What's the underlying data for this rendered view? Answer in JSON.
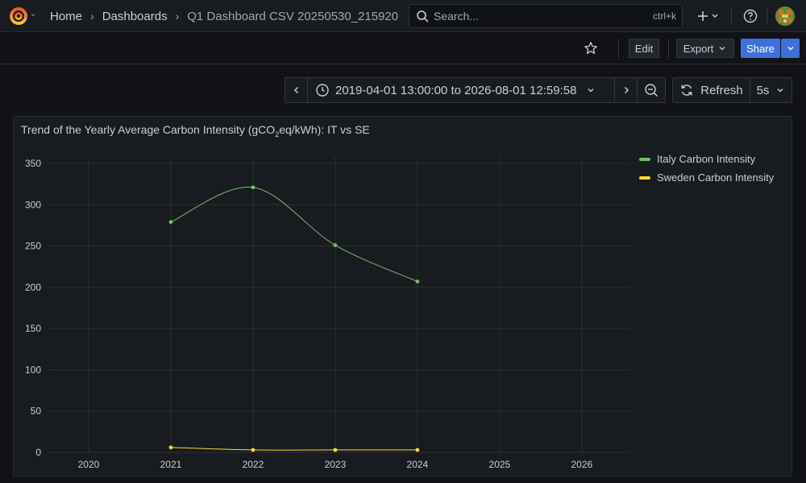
{
  "topbar": {
    "breadcrumbs": [
      "Home",
      "Dashboards",
      "Q1 Dashboard CSV 20250530_215920"
    ],
    "search_placeholder": "Search...",
    "search_shortcut": "ctrl+k"
  },
  "dashbar": {
    "edit_label": "Edit",
    "export_label": "Export",
    "share_label": "Share"
  },
  "timepicker": {
    "range_label": "2019-04-01 13:00:00 to 2026-08-01 12:59:58",
    "refresh_label": "Refresh",
    "refresh_interval": "5s"
  },
  "panel": {
    "title_pre": "Trend of the Yearly Average Carbon Intensity (gCO",
    "title_sub": "2",
    "title_post": "eq/kWh): IT vs SE"
  },
  "colors": {
    "italy": "#73bf69",
    "sweden": "#fade2a",
    "accent": "#3d71d9"
  },
  "chart_data": {
    "type": "line",
    "title": "Trend of the Yearly Average Carbon Intensity (gCO₂eq/kWh): IT vs SE",
    "xlabel": "",
    "ylabel": "",
    "x_ticks": [
      2020,
      2021,
      2022,
      2023,
      2024,
      2025,
      2026
    ],
    "xlim": [
      2019.5,
      2026.58
    ],
    "y_ticks": [
      0,
      50,
      100,
      150,
      200,
      250,
      300,
      350
    ],
    "ylim": [
      0,
      350
    ],
    "grid": true,
    "legend_position": "right",
    "series": [
      {
        "name": "Italy Carbon Intensity",
        "color": "#73bf69",
        "x": [
          2021,
          2022,
          2023,
          2024
        ],
        "values": [
          279,
          321,
          251,
          207
        ]
      },
      {
        "name": "Sweden Carbon Intensity",
        "color": "#fade2a",
        "x": [
          2021,
          2022,
          2023,
          2024
        ],
        "values": [
          6,
          3,
          3,
          3
        ]
      }
    ]
  }
}
